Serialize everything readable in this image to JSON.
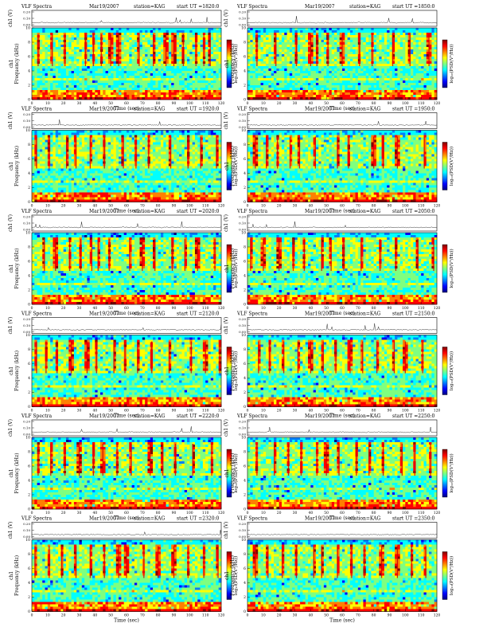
{
  "common": {
    "title_left": "VLF Spectra",
    "date": "Mar19/2007",
    "station": "station=KAG",
    "start_prefix": "start  UT  =",
    "time_label": "Time  (sec)",
    "freq_label_channel": "ch1",
    "freq_label": "Frequency  (kHz)",
    "amp_label": "ch1 (V)",
    "colorbar_label": "log₁₀(PSD(V²/Hz))"
  },
  "chart_data": [
    {
      "type": "heatmap",
      "panel": 1,
      "start_ut": "1820:0",
      "xlim": [
        0,
        120
      ],
      "ylim": [
        0,
        10
      ],
      "amp_ylim": [
        0,
        0.2
      ],
      "x_ticks": [
        0,
        10,
        20,
        30,
        40,
        50,
        60,
        70,
        80,
        90,
        100,
        110,
        120
      ],
      "y_ticks": [
        0,
        2,
        4,
        6,
        8,
        10
      ],
      "amp_ticks": [
        "0.00",
        "0.10",
        "0.20"
      ],
      "bursts": [
        4,
        13,
        21,
        34,
        39,
        44,
        50,
        55,
        68,
        77,
        85,
        90,
        96,
        104,
        109,
        113
      ]
    },
    {
      "type": "heatmap",
      "panel": 2,
      "start_ut": "1850:0",
      "xlim": [
        0,
        120
      ],
      "ylim": [
        0,
        10
      ],
      "amp_ylim": [
        0,
        0.2
      ],
      "x_ticks": [
        0,
        10,
        20,
        30,
        40,
        50,
        60,
        70,
        80,
        90,
        100,
        110,
        120
      ],
      "y_ticks": [
        0,
        2,
        4,
        6,
        8,
        10
      ],
      "amp_ticks": [
        "0.00",
        "0.10",
        "0.20"
      ],
      "bursts": [
        6,
        18,
        31,
        40,
        44,
        51,
        60,
        71,
        79,
        92,
        103,
        115
      ]
    },
    {
      "type": "heatmap",
      "panel": 3,
      "start_ut": "1920:0",
      "xlim": [
        0,
        120
      ],
      "ylim": [
        0,
        10
      ],
      "amp_ylim": [
        0,
        0.2
      ],
      "x_ticks": [
        0,
        10,
        20,
        30,
        40,
        50,
        60,
        70,
        80,
        90,
        100,
        110,
        120
      ],
      "y_ticks": [
        0,
        2,
        4,
        6,
        8,
        10
      ],
      "amp_ticks": [
        "0.00",
        "0.10",
        "0.20"
      ],
      "bursts": [
        3,
        11,
        22,
        28,
        37,
        46,
        58,
        66,
        74,
        88,
        99,
        107,
        117
      ]
    },
    {
      "type": "heatmap",
      "panel": 4,
      "start_ut": "1950:0",
      "xlim": [
        0,
        120
      ],
      "ylim": [
        0,
        10
      ],
      "amp_ylim": [
        0,
        0.2
      ],
      "x_ticks": [
        0,
        10,
        20,
        30,
        40,
        50,
        60,
        70,
        80,
        90,
        100,
        110,
        120
      ],
      "y_ticks": [
        0,
        2,
        4,
        6,
        8,
        10
      ],
      "amp_ticks": [
        "0.00",
        "0.10",
        "0.20"
      ],
      "bursts": [
        5,
        12,
        19,
        27,
        33,
        43,
        57,
        64,
        80,
        86,
        95,
        112
      ]
    },
    {
      "type": "heatmap",
      "panel": 5,
      "start_ut": "2020:0",
      "xlim": [
        0,
        120
      ],
      "ylim": [
        0,
        10
      ],
      "amp_ylim": [
        0,
        0.2
      ],
      "x_ticks": [
        0,
        10,
        20,
        30,
        40,
        50,
        60,
        70,
        80,
        90,
        100,
        110,
        120
      ],
      "y_ticks": [
        0,
        2,
        4,
        6,
        8,
        10
      ],
      "amp_ticks": [
        "0.00",
        "0.10",
        "0.20"
      ],
      "bursts": [
        8,
        15,
        24,
        31,
        38,
        42,
        49,
        62,
        70,
        78,
        89,
        97,
        105,
        116
      ]
    },
    {
      "type": "heatmap",
      "panel": 6,
      "start_ut": "2050:0",
      "xlim": [
        0,
        120
      ],
      "ylim": [
        0,
        10
      ],
      "amp_ylim": [
        0,
        0.2
      ],
      "x_ticks": [
        0,
        10,
        20,
        30,
        40,
        50,
        60,
        70,
        80,
        90,
        100,
        110,
        120
      ],
      "y_ticks": [
        0,
        2,
        4,
        6,
        8,
        10
      ],
      "amp_ticks": [
        "0.00",
        "0.10",
        "0.20"
      ],
      "bursts": [
        2,
        10,
        20,
        29,
        36,
        47,
        53,
        61,
        72,
        84,
        94,
        108,
        118
      ]
    },
    {
      "type": "heatmap",
      "panel": 7,
      "start_ut": "2120:0",
      "xlim": [
        0,
        120
      ],
      "ylim": [
        0,
        10
      ],
      "amp_ylim": [
        0,
        0.2
      ],
      "x_ticks": [
        0,
        10,
        20,
        30,
        40,
        50,
        60,
        70,
        80,
        90,
        100,
        110,
        120
      ],
      "y_ticks": [
        0,
        2,
        4,
        6,
        8,
        10
      ],
      "amp_ticks": [
        "0.00",
        "0.10",
        "0.20"
      ],
      "bursts": [
        3,
        9,
        16,
        25,
        35,
        41,
        52,
        59,
        67,
        76,
        87,
        101,
        110,
        119
      ]
    },
    {
      "type": "heatmap",
      "panel": 8,
      "start_ut": "2150:0",
      "xlim": [
        0,
        120
      ],
      "ylim": [
        0,
        10
      ],
      "amp_ylim": [
        0,
        0.2
      ],
      "x_ticks": [
        0,
        10,
        20,
        30,
        40,
        50,
        60,
        70,
        80,
        90,
        100,
        110,
        120
      ],
      "y_ticks": [
        0,
        2,
        4,
        6,
        8,
        10
      ],
      "amp_ticks": [
        "0.00",
        "0.10",
        "0.20"
      ],
      "bursts": [
        7,
        14,
        23,
        32,
        40,
        48,
        56,
        65,
        73,
        82,
        93,
        100,
        111
      ]
    },
    {
      "type": "heatmap",
      "panel": 9,
      "start_ut": "2220:0",
      "xlim": [
        0,
        120
      ],
      "ylim": [
        0,
        10
      ],
      "amp_ylim": [
        0,
        0.2
      ],
      "x_ticks": [
        0,
        10,
        20,
        30,
        40,
        50,
        60,
        70,
        80,
        90,
        100,
        110,
        120
      ],
      "y_ticks": [
        0,
        2,
        4,
        6,
        8,
        10
      ],
      "amp_ticks": [
        "0.00",
        "0.10",
        "0.20"
      ],
      "bursts": [
        4,
        12,
        21,
        30,
        39,
        45,
        54,
        63,
        75,
        83,
        91,
        102,
        114
      ]
    },
    {
      "type": "heatmap",
      "panel": 10,
      "start_ut": "2250:0",
      "xlim": [
        0,
        120
      ],
      "ylim": [
        0,
        10
      ],
      "amp_ylim": [
        0,
        0.2
      ],
      "x_ticks": [
        0,
        10,
        20,
        30,
        40,
        50,
        60,
        70,
        80,
        90,
        100,
        110,
        120
      ],
      "y_ticks": [
        0,
        2,
        4,
        6,
        8,
        10
      ],
      "amp_ticks": [
        "0.00",
        "0.10",
        "0.20"
      ],
      "bursts": [
        6,
        17,
        26,
        34,
        44,
        50,
        58,
        69,
        77,
        86,
        98,
        106,
        116
      ]
    },
    {
      "type": "heatmap",
      "panel": 11,
      "start_ut": "2320:0",
      "xlim": [
        0,
        120
      ],
      "ylim": [
        0,
        10
      ],
      "amp_ylim": [
        0,
        0.2
      ],
      "x_ticks": [
        0,
        10,
        20,
        30,
        40,
        50,
        60,
        70,
        80,
        90,
        100,
        110,
        120
      ],
      "y_ticks": [
        0,
        2,
        4,
        6,
        8,
        10
      ],
      "amp_ticks": [
        "0.00",
        "0.10",
        "0.20"
      ],
      "bursts": [
        2,
        11,
        19,
        28,
        37,
        46,
        55,
        60,
        71,
        80,
        90,
        99,
        109,
        118
      ]
    },
    {
      "type": "heatmap",
      "panel": 12,
      "start_ut": "2350:0",
      "xlim": [
        0,
        120
      ],
      "ylim": [
        0,
        10
      ],
      "amp_ylim": [
        0,
        0.2
      ],
      "x_ticks": [
        0,
        10,
        20,
        30,
        40,
        50,
        60,
        70,
        80,
        90,
        100,
        110,
        120
      ],
      "y_ticks": [
        0,
        2,
        4,
        6,
        8,
        10
      ],
      "amp_ticks": [
        "0.00",
        "0.10",
        "0.20"
      ],
      "bursts": [
        5,
        13,
        22,
        31,
        42,
        47,
        57,
        66,
        74,
        85,
        95,
        104,
        113
      ]
    }
  ],
  "colormap": [
    "#00007f",
    "#0000ff",
    "#007fff",
    "#00ffff",
    "#7fff7f",
    "#ffff00",
    "#ff7f00",
    "#ff0000",
    "#7f0000"
  ]
}
